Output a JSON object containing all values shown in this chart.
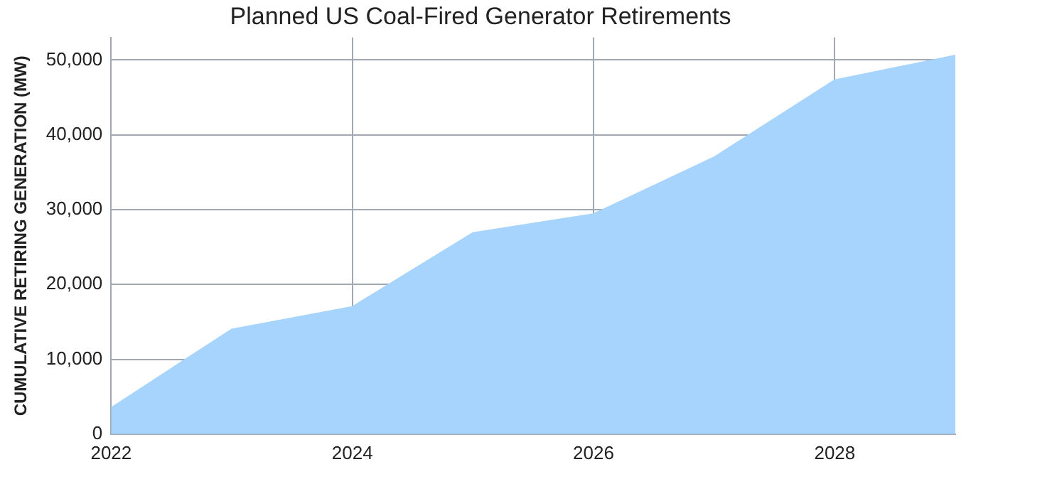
{
  "chart_data": {
    "type": "area",
    "title": "Planned US Coal-Fired Generator Retirements",
    "ylabel": "CUMULATIVE RETIRING GENERATION (MW)",
    "x": [
      2022,
      2023,
      2024,
      2025,
      2026,
      2027,
      2028,
      2029
    ],
    "values": [
      3500,
      14000,
      17000,
      26900,
      29400,
      37000,
      47300,
      50600
    ],
    "color": "#a6d4fc",
    "xlim": [
      2022,
      2029
    ],
    "xticks": [
      2022,
      2024,
      2026,
      2028
    ],
    "ylim": [
      0,
      53000
    ],
    "yticks": [
      0,
      {
        "value": 10000,
        "label": "10,000"
      },
      {
        "value": 20000,
        "label": "20,000"
      },
      {
        "value": 30000,
        "label": "30,000"
      },
      {
        "value": 40000,
        "label": "40,000"
      },
      {
        "value": 50000,
        "label": "50,000"
      }
    ],
    "grid": true,
    "legend": false
  }
}
